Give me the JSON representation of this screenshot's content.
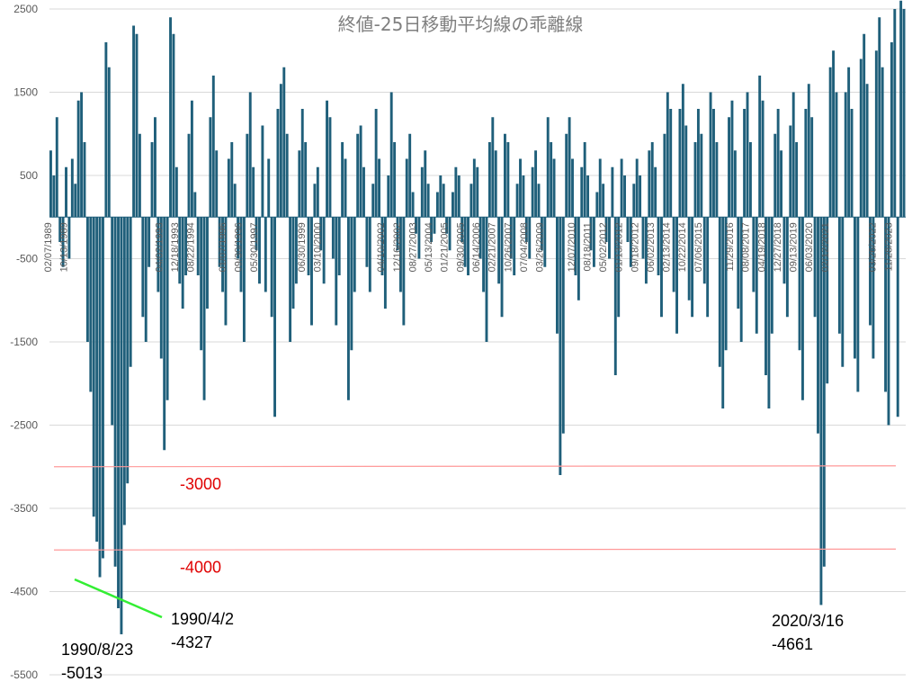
{
  "chart_data": {
    "type": "bar",
    "title": "終値-25日移動平均線の乖離線",
    "ylim": [
      -5500,
      2500
    ],
    "yticks": [
      2500,
      1500,
      500,
      -500,
      -1500,
      -2500,
      -3500,
      -4500,
      -5500
    ],
    "grid": true,
    "legend": "none",
    "x_tick_labels": [
      "02/07/1989",
      "10/13/1989",
      "",
      "",
      "",
      "",
      "",
      "04/02/1993",
      "12/18/1993",
      "08/22/1994",
      "",
      "01/07/1996",
      "09/30/1996",
      "05/30/1997",
      "",
      "",
      "06/30/1999",
      "03/10/2000",
      "",
      "",
      "",
      "04/10/2002",
      "12/16/2002",
      "08/27/2003",
      "05/13/2004",
      "01/21/2005",
      "09/30/2005",
      "06/14/2006",
      "02/21/2007",
      "10/26/2007",
      "07/04/2008",
      "03/26/2009",
      "",
      "12/07/2010",
      "08/18/2011",
      "05/02/2012",
      "01/13/2012",
      "09/18/2012",
      "06/02/2013",
      "02/13/2014",
      "10/22/2014",
      "07/06/2015",
      "",
      "11/29/2016",
      "08/08/2017",
      "04/19/2018",
      "12/27/2018",
      "09/13/2019",
      "06/03/2020",
      "02/12/2021",
      "",
      "",
      "03/26/2022",
      "11/28/2023"
    ],
    "highlight_points": [
      {
        "date": "1990/4/2",
        "value": -4327,
        "label_date": "1990/4/2",
        "label_value": "-4327"
      },
      {
        "date": "1990/8/23",
        "value": -5013,
        "label_date": "1990/8/23",
        "label_value": "-5013"
      },
      {
        "date": "2020/3/16",
        "value": -4661,
        "label_date": "2020/3/16",
        "label_value": "-4661"
      }
    ],
    "reference_lines": [
      {
        "value": -3000,
        "label": "-3000",
        "color": "#ff9999"
      },
      {
        "value": -4000,
        "label": "-4000",
        "color": "#ff9999"
      }
    ],
    "colors": {
      "bar": "#1f5f7a",
      "ref_label": "#e00000",
      "arrow": "#33ee33",
      "grid": "#d9d9d9"
    },
    "series": [
      {
        "values": [
          800,
          500,
          1200,
          -300,
          -600,
          600,
          -500,
          700,
          400,
          1400,
          1500,
          900,
          -1500,
          -2100,
          -3600,
          -3900,
          -4327,
          -4100,
          2100,
          1800,
          -2500,
          -4200,
          -4700,
          -5013,
          -3700,
          -3200,
          -1800,
          2300,
          2200,
          1000,
          -1200,
          -1500,
          -600,
          900,
          1200,
          -900,
          -1700,
          -2800,
          -2200,
          2400,
          2200,
          600,
          -800,
          -1100,
          -700,
          1000,
          1400,
          300,
          -700,
          -1600,
          -2200,
          -1100,
          1200,
          1700,
          800,
          -600,
          -900,
          -1300,
          700,
          900,
          400,
          -500,
          -900,
          -1500,
          1000,
          1500,
          600,
          -400,
          -800,
          1100,
          -900,
          700,
          -1200,
          -2400,
          1300,
          1600,
          1800,
          1000,
          -1500,
          -1100,
          -800,
          800,
          1300,
          900,
          -700,
          -1300,
          400,
          600,
          -400,
          -800,
          1400,
          1200,
          -500,
          -1300,
          -700,
          900,
          700,
          -2200,
          -1600,
          -900,
          1000,
          1100,
          600,
          -600,
          -900,
          400,
          1300,
          700,
          -700,
          -1100,
          500,
          1500,
          900,
          -400,
          -900,
          -1300,
          700,
          1000,
          300,
          -200,
          -500,
          600,
          800,
          400,
          -300,
          -200,
          300,
          500,
          400,
          -200,
          -400,
          300,
          600,
          500,
          -300,
          -600,
          -700,
          400,
          700,
          600,
          -500,
          -900,
          -1500,
          900,
          1200,
          800,
          -800,
          -1200,
          1000,
          900,
          -500,
          -700,
          400,
          700,
          500,
          -300,
          -500,
          600,
          800,
          400,
          -400,
          -600,
          1200,
          900,
          700,
          -1400,
          -3100,
          -2600,
          1000,
          1200,
          700,
          -700,
          -1000,
          600,
          900,
          500,
          -400,
          -600,
          300,
          700,
          400,
          -300,
          -500,
          600,
          -1900,
          -1200,
          700,
          500,
          -300,
          -600,
          400,
          700,
          500,
          -500,
          -800,
          800,
          900,
          600,
          -700,
          -1200,
          1000,
          1500,
          1300,
          -900,
          -1400,
          1300,
          1600,
          1100,
          -1000,
          -1200,
          900,
          1300,
          1000,
          -800,
          -1200,
          1500,
          1300,
          900,
          -1800,
          -2300,
          -1600,
          1200,
          1400,
          800,
          -1100,
          -1500,
          1300,
          1500,
          900,
          -900,
          -1400,
          1700,
          1400,
          -1900,
          -2300,
          -1400,
          1000,
          1300,
          800,
          -800,
          -1200,
          1100,
          1500,
          900,
          -1600,
          -2200,
          1300,
          1600,
          1200,
          -1200,
          -2600,
          -4661,
          -4200,
          -2000,
          1800,
          2000,
          1500,
          -1400,
          -1800,
          1500,
          1800,
          1300,
          -1700,
          -2100,
          1900,
          2200,
          1600,
          -1300,
          -1700,
          2000,
          2400,
          1800,
          -2100,
          -2500,
          2100,
          2500,
          -2400,
          2600,
          2500
        ]
      }
    ]
  }
}
